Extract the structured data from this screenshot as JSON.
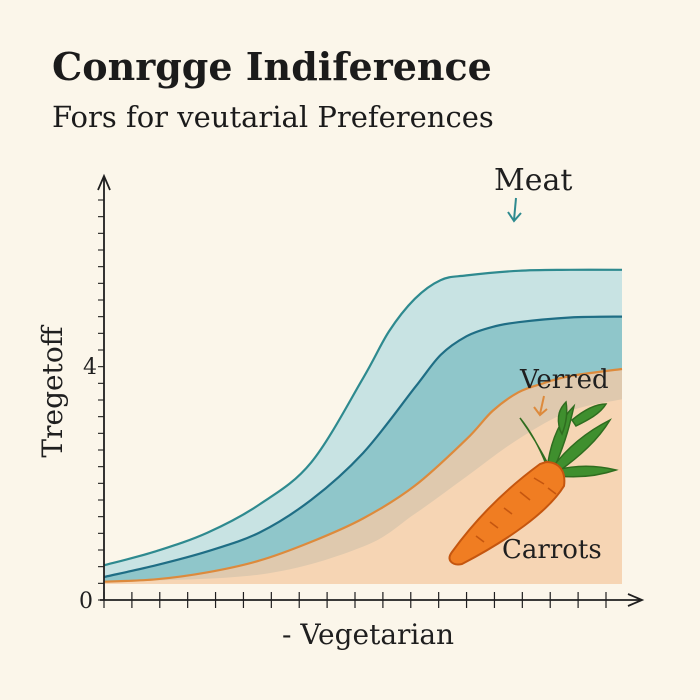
{
  "title": "Conrgge Indiference",
  "subtitle": "Fors for veutarial Preferences",
  "colors": {
    "background": "#fbf6ea",
    "meat_fill": "#c8e3e3",
    "meat_line": "#2e8a8f",
    "middle_fill": "#8fc6ca",
    "middle_line": "#1f6e85",
    "verred_fill": "#dfc9ae",
    "verred_line": "#dd8a3c",
    "carrots_fill": "#f6d5b4",
    "axis": "#1f1f1f"
  },
  "icons": [
    "carrot-icon"
  ],
  "chart_data": {
    "type": "area",
    "title": "Conrgge Indiference",
    "subtitle": "Fors for veutarial Preferences",
    "xlabel": "- Vegetarian",
    "ylabel": "Tregetoff",
    "x_tick_count": 19,
    "y_ticks": [
      {
        "value": 0,
        "label": "0"
      },
      {
        "value": 4,
        "label": "4"
      }
    ],
    "y_minor_tick_count": 24,
    "xlim": [
      0,
      1
    ],
    "ylim": [
      0,
      8
    ],
    "grid": false,
    "series": [
      {
        "name": "Meat",
        "x": [
          0,
          0.1,
          0.2,
          0.3,
          0.4,
          0.5,
          0.55,
          0.6,
          0.65,
          0.7,
          0.8,
          0.9,
          1.0
        ],
        "y": [
          0.4,
          0.7,
          1.1,
          1.7,
          2.6,
          4.4,
          5.4,
          6.1,
          6.5,
          6.6,
          6.7,
          6.72,
          6.72
        ]
      },
      {
        "name": "",
        "x": [
          0,
          0.1,
          0.2,
          0.3,
          0.4,
          0.5,
          0.6,
          0.65,
          0.7,
          0.75,
          0.8,
          0.9,
          1.0
        ],
        "y": [
          0.15,
          0.4,
          0.7,
          1.1,
          1.8,
          2.8,
          4.2,
          4.9,
          5.3,
          5.5,
          5.6,
          5.7,
          5.72
        ]
      },
      {
        "name": "Verred",
        "x": [
          0,
          0.1,
          0.2,
          0.3,
          0.4,
          0.5,
          0.6,
          0.7,
          0.75,
          0.8,
          0.85,
          0.9,
          1.0
        ],
        "y": [
          0.05,
          0.1,
          0.25,
          0.5,
          0.9,
          1.4,
          2.1,
          3.1,
          3.7,
          4.1,
          4.3,
          4.45,
          4.6
        ]
      },
      {
        "name": "Carrots",
        "x": [
          0,
          0.3,
          0.5,
          0.6,
          0.7,
          0.8,
          0.9,
          1.0
        ],
        "y": [
          0.05,
          0.2,
          0.8,
          1.5,
          2.3,
          3.1,
          3.7,
          3.95
        ]
      }
    ]
  }
}
